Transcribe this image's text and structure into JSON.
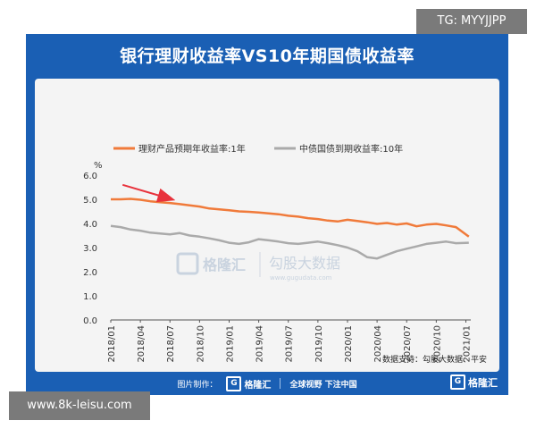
{
  "chart_title": "银行理财收益率VS10年期国债收益率",
  "source_note": "数据支持：勾股大数据、平安",
  "footer": {
    "prefix": "图片制作：",
    "brand": "格隆汇",
    "slogan": "全球视野 下注中国"
  },
  "corner_brand": "格隆汇",
  "watermark": {
    "brand": "格隆汇",
    "site": "勾股大数据",
    "url": "www.gugudata.com"
  },
  "overlays": {
    "tg": "TG: MYYJJPP",
    "site": "www.8k-leisu.com"
  },
  "colors": {
    "card": "#1a5fb4",
    "wealth": "#f07a3a",
    "bond": "#aaaaaa",
    "arrow": "#e8323c"
  },
  "chart_data": {
    "type": "line",
    "title": "银行理财收益率VS10年期国债收益率",
    "ylabel": "%",
    "ylim": [
      0,
      6
    ],
    "yticks": [
      "0.0",
      "1.0",
      "2.0",
      "3.0",
      "4.0",
      "5.0",
      "6.0"
    ],
    "x_ticks": [
      "2018/01",
      "2018/04",
      "2018/07",
      "2018/10",
      "2019/01",
      "2019/04",
      "2019/07",
      "2019/10",
      "2020/01",
      "2020/04",
      "2020/07",
      "2020/10",
      "2021/01"
    ],
    "x_range": [
      0,
      36.5
    ],
    "legend_position": "top",
    "series": [
      {
        "name": "理财产品预期年收益率:1年",
        "color": "#f07a3a",
        "x": [
          0,
          1,
          2,
          3,
          4,
          5,
          6,
          7,
          8,
          9,
          10,
          11,
          12,
          13,
          14,
          15,
          16,
          17,
          18,
          19,
          20,
          21,
          22,
          23,
          24,
          25,
          26,
          27,
          28,
          29,
          30,
          31,
          32,
          33,
          34,
          35,
          36.3
        ],
        "values": [
          5.0,
          5.0,
          5.02,
          4.98,
          4.92,
          4.88,
          4.85,
          4.8,
          4.75,
          4.7,
          4.62,
          4.58,
          4.55,
          4.5,
          4.48,
          4.45,
          4.42,
          4.38,
          4.32,
          4.28,
          4.22,
          4.18,
          4.12,
          4.08,
          4.15,
          4.1,
          4.05,
          3.98,
          4.02,
          3.95,
          4.0,
          3.88,
          3.95,
          3.98,
          3.92,
          3.85,
          3.45
        ]
      },
      {
        "name": "中债国债到期收益率:10年",
        "color": "#aaaaaa",
        "x": [
          0,
          1,
          2,
          3,
          4,
          5,
          6,
          7,
          8,
          9,
          10,
          11,
          12,
          13,
          14,
          15,
          16,
          17,
          18,
          19,
          20,
          21,
          22,
          23,
          24,
          25,
          26,
          27,
          28,
          29,
          30,
          31,
          32,
          33,
          34,
          35,
          36.3
        ],
        "values": [
          3.9,
          3.85,
          3.75,
          3.7,
          3.62,
          3.58,
          3.55,
          3.6,
          3.5,
          3.45,
          3.38,
          3.3,
          3.2,
          3.15,
          3.22,
          3.35,
          3.3,
          3.25,
          3.18,
          3.15,
          3.2,
          3.25,
          3.18,
          3.1,
          3.0,
          2.85,
          2.6,
          2.55,
          2.7,
          2.85,
          2.95,
          3.05,
          3.15,
          3.2,
          3.25,
          3.18,
          3.2
        ]
      }
    ],
    "annotation": {
      "type": "arrow",
      "from": [
        1.2,
        5.6
      ],
      "to": [
        6.2,
        5.0
      ]
    }
  }
}
